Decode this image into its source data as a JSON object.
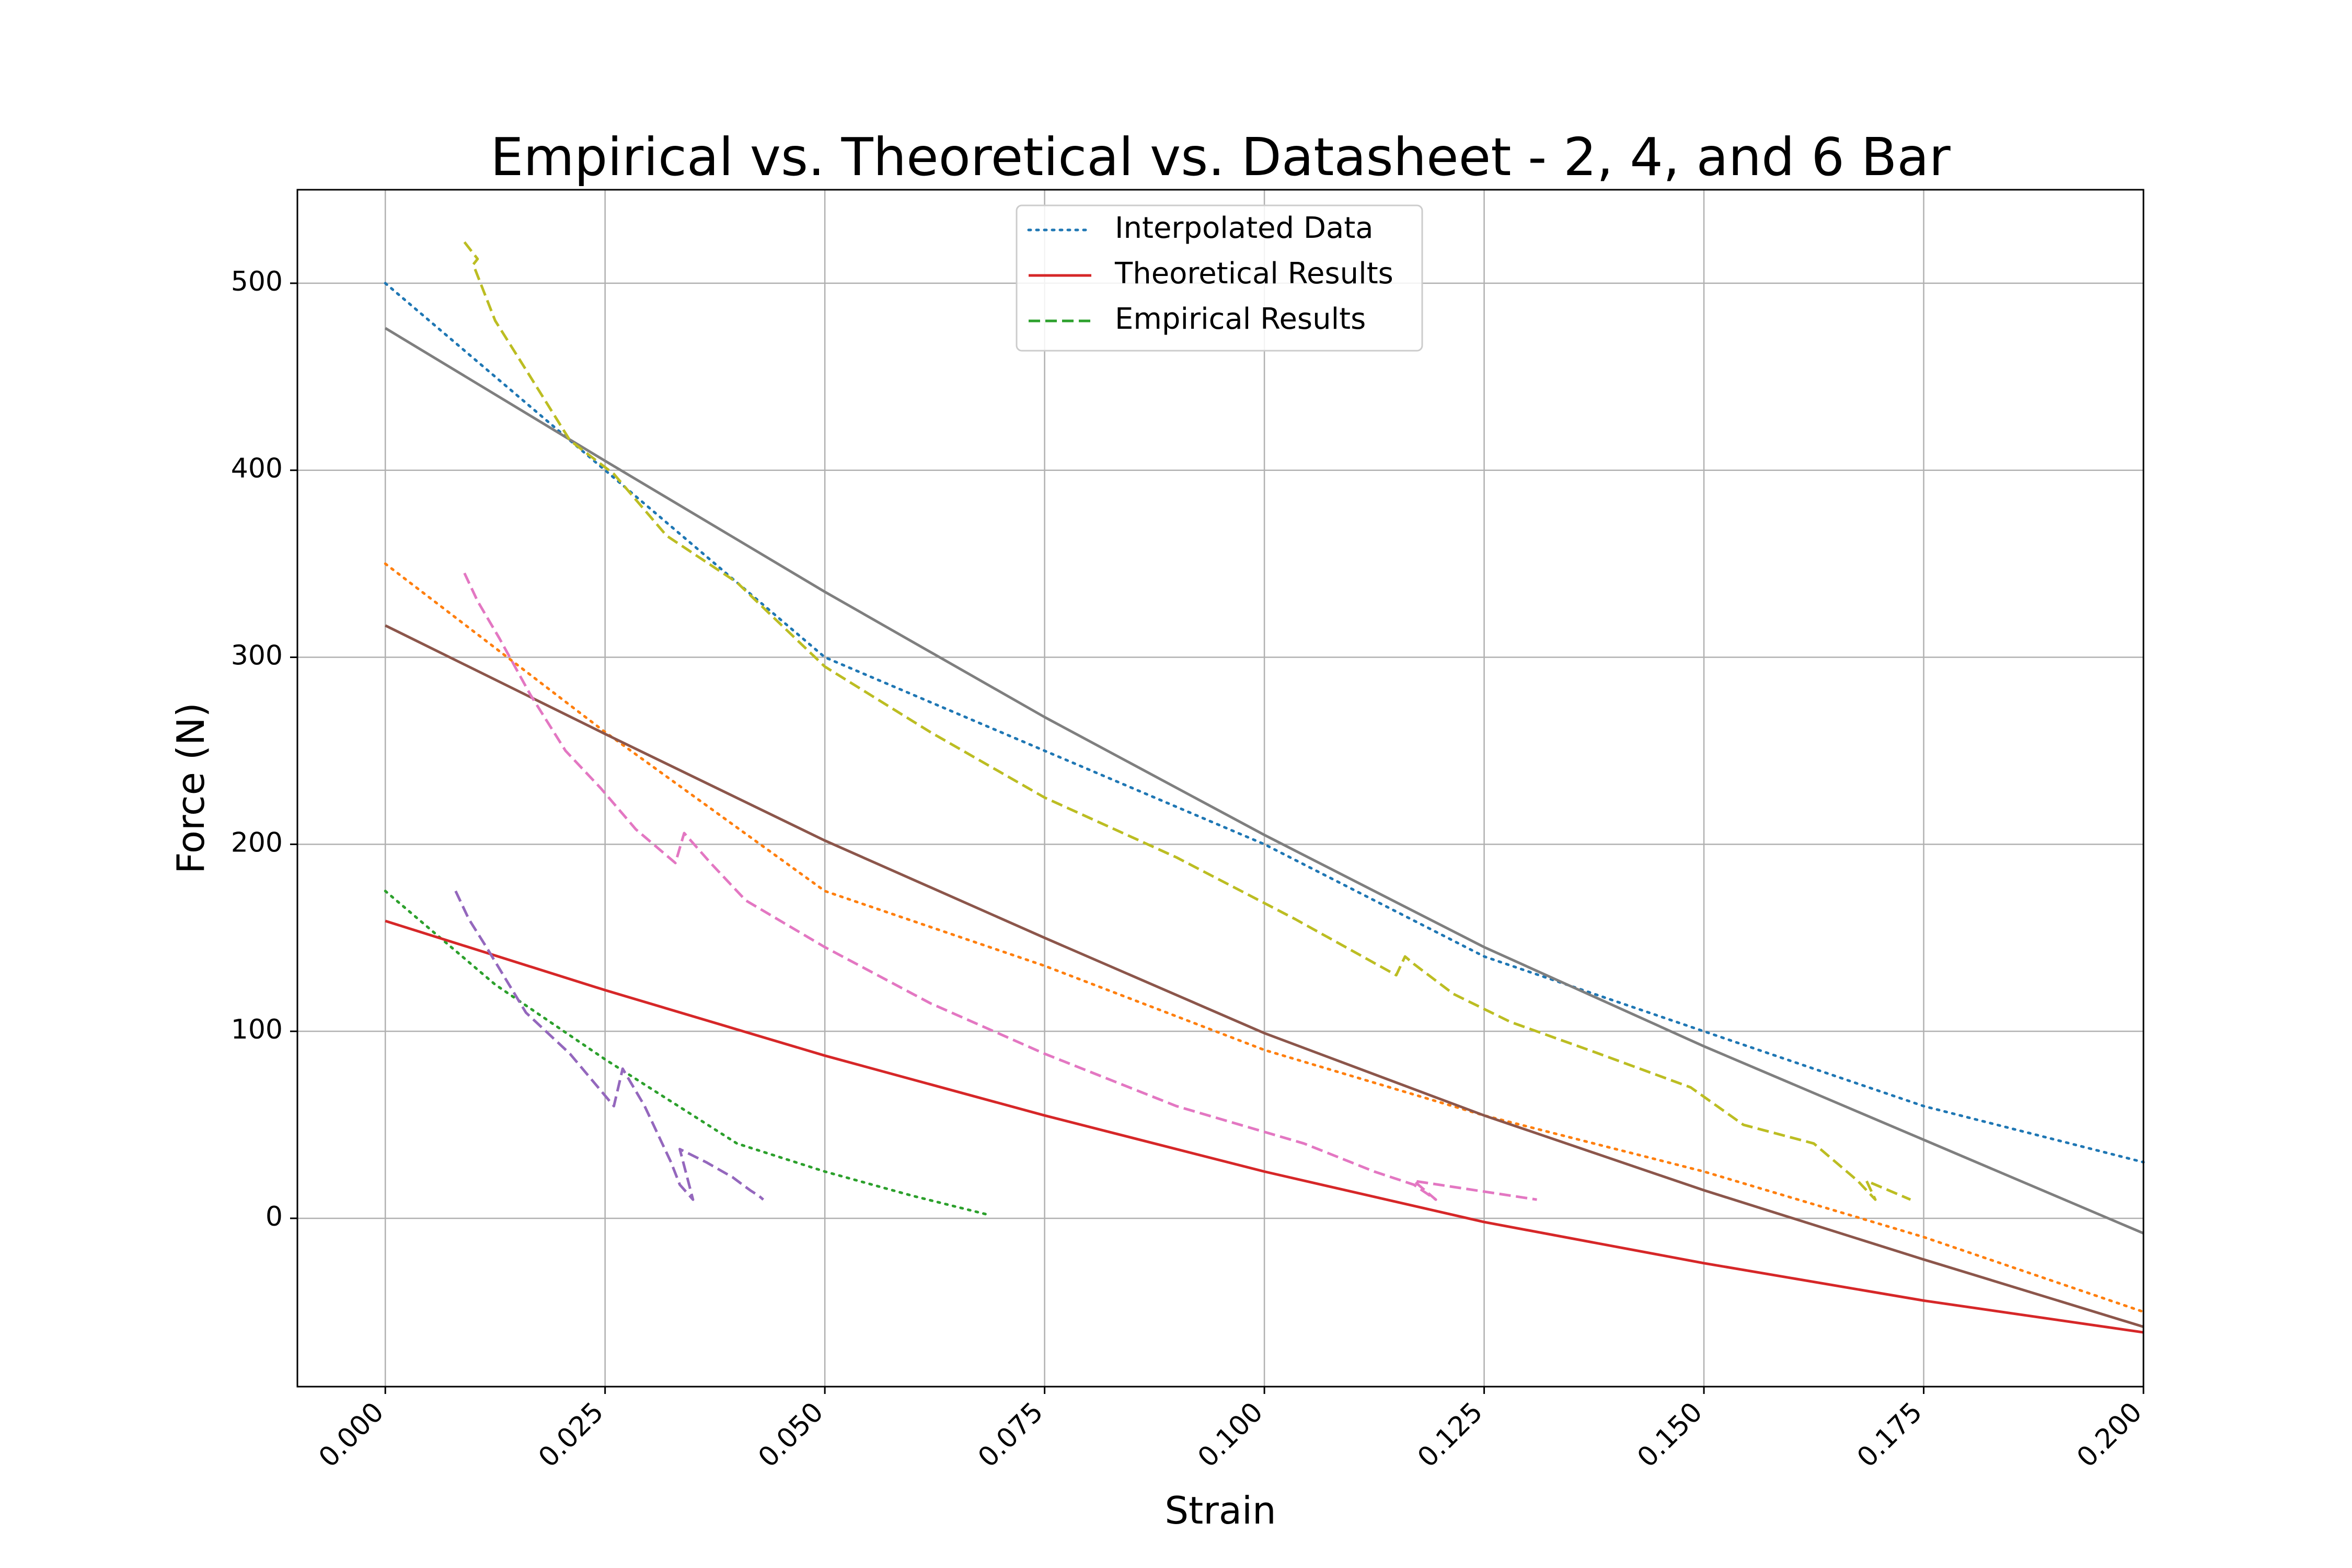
{
  "chart_data": {
    "type": "line",
    "title": "Empirical vs. Theoretical vs. Datasheet - 2, 4, and 6 Bar",
    "xlabel": "Strain",
    "ylabel": "Force (N)",
    "xlim": [
      -0.01,
      0.2
    ],
    "ylim": [
      -90,
      550
    ],
    "xticks": [
      0.0,
      0.025,
      0.05,
      0.075,
      0.1,
      0.125,
      0.15,
      0.175,
      0.2
    ],
    "xtick_labels": [
      "0.000",
      "0.025",
      "0.050",
      "0.075",
      "0.100",
      "0.125",
      "0.150",
      "0.175",
      "0.200"
    ],
    "yticks": [
      0,
      100,
      200,
      300,
      400,
      500
    ],
    "ytick_labels": [
      "0",
      "100",
      "200",
      "300",
      "400",
      "500"
    ],
    "grid": true,
    "legend_position": "upper center",
    "legend": [
      {
        "label": "Interpolated Data",
        "color": "#1f77b4",
        "style": "dotted"
      },
      {
        "label": "Theoretical Results",
        "color": "#d62728",
        "style": "solid"
      },
      {
        "label": "Empirical Results",
        "color": "#2ca02c",
        "style": "dashed"
      }
    ],
    "series": [
      {
        "color": "#1f77b4",
        "style": "dotted",
        "x": [
          0.0,
          0.025,
          0.05,
          0.075,
          0.1,
          0.125,
          0.15,
          0.175,
          0.2
        ],
        "y": [
          500,
          400,
          300,
          250,
          200,
          140,
          100,
          60,
          30
        ]
      },
      {
        "color": "#ff7f0e",
        "style": "dotted",
        "x": [
          0.0,
          0.025,
          0.05,
          0.075,
          0.1,
          0.125,
          0.15,
          0.175,
          0.2
        ],
        "y": [
          350,
          260,
          175,
          135,
          90,
          55,
          25,
          -10,
          -50
        ]
      },
      {
        "color": "#2ca02c",
        "style": "dotted",
        "x": [
          0.0,
          0.0125,
          0.025,
          0.04,
          0.05,
          0.06,
          0.0685
        ],
        "y": [
          175,
          125,
          85,
          40,
          25,
          12,
          2
        ]
      },
      {
        "color": "#d62728",
        "style": "solid",
        "x": [
          0.0,
          0.025,
          0.05,
          0.075,
          0.1,
          0.125,
          0.15,
          0.175,
          0.2
        ],
        "y": [
          159,
          122,
          87,
          55,
          25,
          -2,
          -24,
          -44,
          -61
        ]
      },
      {
        "color": "#9467bd",
        "style": "dashed",
        "x": [
          0.008,
          0.0095,
          0.0115,
          0.016,
          0.021,
          0.026,
          0.027,
          0.0295,
          0.0325,
          0.0335,
          0.035,
          0.0335,
          0.0365,
          0.0395,
          0.0415,
          0.0425,
          0.043
        ],
        "y": [
          175,
          160,
          145,
          110,
          88,
          60,
          80,
          60,
          30,
          18,
          10,
          37,
          30,
          22,
          15,
          12,
          10
        ]
      },
      {
        "color": "#8c564b",
        "style": "solid",
        "x": [
          0.0,
          0.025,
          0.05,
          0.075,
          0.1,
          0.125,
          0.15,
          0.175,
          0.2
        ],
        "y": [
          317,
          259,
          202,
          150,
          99,
          55,
          15,
          -22,
          -58
        ]
      },
      {
        "color": "#e377c2",
        "style": "dashed",
        "x": [
          0.009,
          0.0105,
          0.013,
          0.0165,
          0.0205,
          0.0245,
          0.0285,
          0.033,
          0.034,
          0.037,
          0.041,
          0.05,
          0.062,
          0.075,
          0.09,
          0.1045,
          0.1125,
          0.117,
          0.1195,
          0.117,
          0.124,
          0.131
        ],
        "y": [
          345,
          330,
          310,
          280,
          250,
          230,
          208,
          190,
          206,
          190,
          170,
          145,
          115,
          88,
          60,
          40,
          25,
          18,
          10,
          20,
          15,
          10
        ]
      },
      {
        "color": "#7f7f7f",
        "style": "solid",
        "x": [
          0.0,
          0.025,
          0.05,
          0.075,
          0.1,
          0.125,
          0.15,
          0.175,
          0.2
        ],
        "y": [
          476,
          405,
          335,
          268,
          205,
          145,
          92,
          42,
          -8
        ]
      },
      {
        "color": "#bcbd22",
        "style": "dashed",
        "x": [
          0.009,
          0.0105,
          0.01,
          0.0125,
          0.0165,
          0.021,
          0.026,
          0.032,
          0.04,
          0.05,
          0.062,
          0.075,
          0.09,
          0.1035,
          0.115,
          0.116,
          0.117,
          0.1215,
          0.128,
          0.1375,
          0.1485,
          0.1545,
          0.1625,
          0.1675,
          0.1695,
          0.1685,
          0.1735
        ],
        "y": [
          522,
          513,
          510,
          480,
          450,
          416,
          398,
          365,
          340,
          295,
          260,
          225,
          193,
          160,
          130,
          140,
          136,
          120,
          105,
          89,
          70,
          50,
          40,
          20,
          10,
          20,
          10
        ]
      }
    ]
  }
}
